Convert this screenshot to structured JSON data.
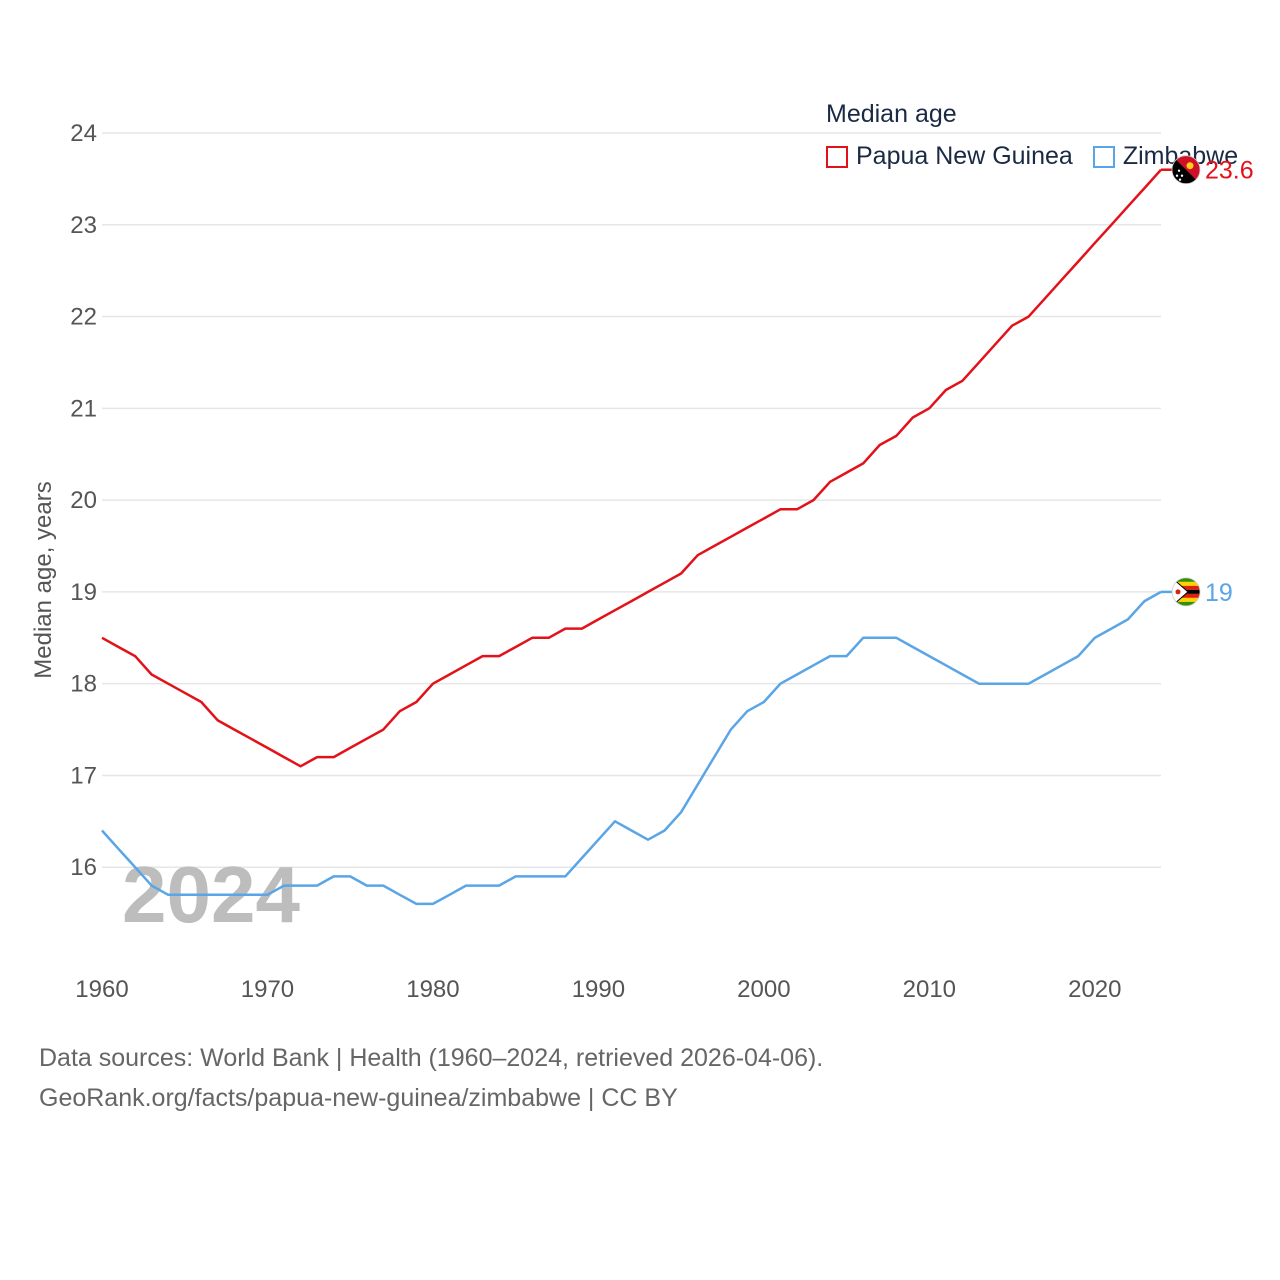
{
  "chart_data": {
    "type": "line",
    "legend_title": "Median age",
    "ylabel": "Median age, years",
    "xlabel": "",
    "xlim": [
      1960,
      2024
    ],
    "ylim": [
      15,
      24
    ],
    "yticks": [
      16,
      17,
      18,
      19,
      20,
      21,
      22,
      23,
      24
    ],
    "xticks": [
      1960,
      1970,
      1980,
      1990,
      2000,
      2010,
      2020
    ],
    "watermark_year": "2024",
    "legend_position": "top-right",
    "x": [
      1960,
      1961,
      1962,
      1963,
      1964,
      1965,
      1966,
      1967,
      1968,
      1969,
      1970,
      1971,
      1972,
      1973,
      1974,
      1975,
      1976,
      1977,
      1978,
      1979,
      1980,
      1981,
      1982,
      1983,
      1984,
      1985,
      1986,
      1987,
      1988,
      1989,
      1990,
      1991,
      1992,
      1993,
      1994,
      1995,
      1996,
      1997,
      1998,
      1999,
      2000,
      2001,
      2002,
      2003,
      2004,
      2005,
      2006,
      2007,
      2008,
      2009,
      2010,
      2011,
      2012,
      2013,
      2014,
      2015,
      2016,
      2017,
      2018,
      2019,
      2020,
      2021,
      2022,
      2023,
      2024
    ],
    "series": [
      {
        "name": "Papua New Guinea",
        "color": "#e3121a",
        "end_label": "23.6",
        "flag": "papua-new-guinea-flag",
        "values": [
          18.5,
          18.4,
          18.3,
          18.1,
          18.0,
          17.9,
          17.8,
          17.6,
          17.5,
          17.4,
          17.3,
          17.2,
          17.1,
          17.2,
          17.2,
          17.3,
          17.4,
          17.5,
          17.7,
          17.8,
          18.0,
          18.1,
          18.2,
          18.3,
          18.3,
          18.4,
          18.5,
          18.5,
          18.6,
          18.6,
          18.7,
          18.8,
          18.9,
          19.0,
          19.1,
          19.2,
          19.4,
          19.5,
          19.6,
          19.7,
          19.8,
          19.9,
          19.9,
          20.0,
          20.2,
          20.3,
          20.4,
          20.6,
          20.7,
          20.9,
          21.0,
          21.2,
          21.3,
          21.5,
          21.7,
          21.9,
          22.0,
          22.2,
          22.4,
          22.6,
          22.8,
          23.0,
          23.2,
          23.4,
          23.6
        ]
      },
      {
        "name": "Zimbabwe",
        "color": "#5aa5e6",
        "end_label": "19",
        "flag": "zimbabwe-flag",
        "values": [
          16.4,
          16.2,
          16.0,
          15.8,
          15.7,
          15.7,
          15.7,
          15.7,
          15.7,
          15.7,
          15.7,
          15.8,
          15.8,
          15.8,
          15.9,
          15.9,
          15.8,
          15.8,
          15.7,
          15.6,
          15.6,
          15.7,
          15.8,
          15.8,
          15.8,
          15.9,
          15.9,
          15.9,
          15.9,
          16.1,
          16.3,
          16.5,
          16.4,
          16.3,
          16.4,
          16.6,
          16.9,
          17.2,
          17.5,
          17.7,
          17.8,
          18.0,
          18.1,
          18.2,
          18.3,
          18.3,
          18.5,
          18.5,
          18.5,
          18.4,
          18.3,
          18.2,
          18.1,
          18.0,
          18.0,
          18.0,
          18.0,
          18.1,
          18.2,
          18.3,
          18.5,
          18.6,
          18.7,
          18.9,
          19.0
        ]
      }
    ]
  },
  "footer": {
    "line1": "Data sources: World Bank | Health (1960–2024, retrieved 2026-04-06).",
    "line2": "GeoRank.org/facts/papua-new-guinea/zimbabwe | CC BY"
  }
}
